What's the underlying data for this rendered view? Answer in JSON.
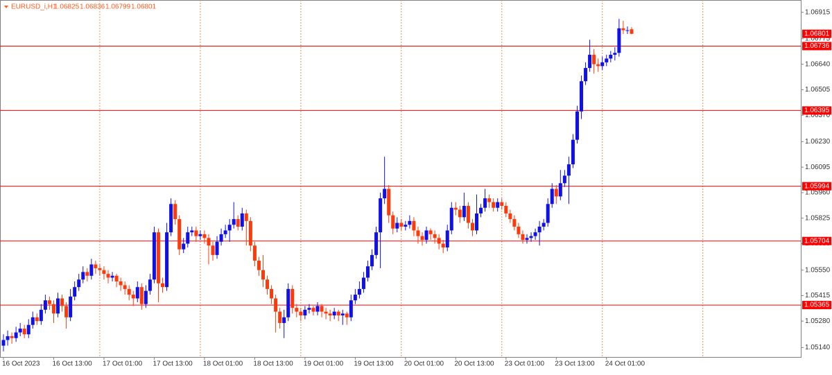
{
  "chart_data": {
    "type": "candlestick",
    "symbol": "EURUSD_i,H1",
    "categories": [
      "16 Oct 2023",
      null,
      null,
      null,
      null,
      null,
      null,
      null,
      null,
      null,
      null,
      null,
      "16 Oct 13:00",
      null,
      null,
      null,
      null,
      null,
      null,
      null,
      null,
      null,
      null,
      null,
      "17 Oct 01:00",
      null,
      null,
      null,
      null,
      null,
      null,
      null,
      null,
      null,
      null,
      null,
      "17 Oct 13:00",
      null,
      null,
      null,
      null,
      null,
      null,
      null,
      null,
      null,
      null,
      null,
      "18 Oct 01:00",
      null,
      null,
      null,
      null,
      null,
      null,
      null,
      null,
      null,
      null,
      null,
      "18 Oct 13:00",
      null,
      null,
      null,
      null,
      null,
      null,
      null,
      null,
      null,
      null,
      null,
      "19 Oct 01:00",
      null,
      null,
      null,
      null,
      null,
      null,
      null,
      null,
      null,
      null,
      null,
      "19 Oct 13:00",
      null,
      null,
      null,
      null,
      null,
      null,
      null,
      null,
      null,
      null,
      null,
      "20 Oct 01:00",
      null,
      null,
      null,
      null,
      null,
      null,
      null,
      null,
      null,
      null,
      null,
      "20 Oct 13:00",
      null,
      null,
      null,
      null,
      null,
      null,
      null,
      null,
      null,
      null,
      null,
      "23 Oct 01:00",
      null,
      null,
      null,
      null,
      null,
      null,
      null,
      null,
      null,
      null,
      null,
      "23 Oct 13:00",
      null,
      null,
      null,
      null,
      null,
      null,
      null,
      null,
      null,
      null,
      null,
      "24 Oct 01:00",
      null,
      null,
      null,
      null,
      null,
      null
    ],
    "candles": [
      [
        1.0515,
        1.0521,
        1.0512,
        1.0518
      ],
      [
        1.0518,
        1.0523,
        1.0515,
        1.052
      ],
      [
        1.052,
        1.0522,
        1.0516,
        1.0519
      ],
      [
        1.0519,
        1.0525,
        1.0517,
        1.0522
      ],
      [
        1.0522,
        1.0527,
        1.052,
        1.0524
      ],
      [
        1.0524,
        1.0526,
        1.0519,
        1.0521
      ],
      [
        1.0521,
        1.0529,
        1.0519,
        1.0526
      ],
      [
        1.0526,
        1.0533,
        1.0524,
        1.053
      ],
      [
        1.053,
        1.0532,
        1.0526,
        1.0528
      ],
      [
        1.0528,
        1.0537,
        1.0526,
        1.0534
      ],
      [
        1.0534,
        1.0542,
        1.0532,
        1.0539
      ],
      [
        1.0539,
        1.0541,
        1.0534,
        1.0537
      ],
      [
        1.0537,
        1.0539,
        1.0527,
        1.0532
      ],
      [
        1.0532,
        1.0543,
        1.053,
        1.054
      ],
      [
        1.054,
        1.0542,
        1.0533,
        1.0536
      ],
      [
        1.0536,
        1.0538,
        1.0524,
        1.053
      ],
      [
        1.053,
        1.0545,
        1.0528,
        1.0541
      ],
      [
        1.0541,
        1.0549,
        1.0539,
        1.0546
      ],
      [
        1.0546,
        1.0553,
        1.0544,
        1.055
      ],
      [
        1.055,
        1.0557,
        1.0548,
        1.0554
      ],
      [
        1.0554,
        1.0556,
        1.0549,
        1.0552
      ],
      [
        1.0552,
        1.0561,
        1.055,
        1.0558
      ],
      [
        1.0558,
        1.056,
        1.0553,
        1.0556
      ],
      [
        1.0556,
        1.0558,
        1.0552,
        1.0555
      ],
      [
        1.0555,
        1.0557,
        1.055,
        1.0553
      ],
      [
        1.0553,
        1.0555,
        1.0548,
        1.0551
      ],
      [
        1.0551,
        1.0554,
        1.0549,
        1.0552
      ],
      [
        1.0552,
        1.0553,
        1.0546,
        1.0549
      ],
      [
        1.0549,
        1.0551,
        1.0544,
        1.0547
      ],
      [
        1.0547,
        1.0549,
        1.0542,
        1.0545
      ],
      [
        1.0545,
        1.0547,
        1.0539,
        1.0542
      ],
      [
        1.0542,
        1.0544,
        1.0536,
        1.054
      ],
      [
        1.054,
        1.0549,
        1.0538,
        1.0546
      ],
      [
        1.0546,
        1.0548,
        1.0534,
        1.0537
      ],
      [
        1.0537,
        1.0547,
        1.0535,
        1.0544
      ],
      [
        1.0544,
        1.0553,
        1.0542,
        1.055
      ],
      [
        1.055,
        1.0578,
        1.0548,
        1.0575
      ],
      [
        1.0575,
        1.0577,
        1.0538,
        1.0548
      ],
      [
        1.0548,
        1.0551,
        1.0543,
        1.0546
      ],
      [
        1.0546,
        1.058,
        1.0544,
        1.0575
      ],
      [
        1.0575,
        1.0593,
        1.0573,
        1.059
      ],
      [
        1.059,
        1.0592,
        1.0579,
        1.0582
      ],
      [
        1.0582,
        1.0584,
        1.0563,
        1.0566
      ],
      [
        1.0566,
        1.0572,
        1.0564,
        1.0569
      ],
      [
        1.0569,
        1.0578,
        1.0567,
        1.0575
      ],
      [
        1.0575,
        1.0578,
        1.0573,
        1.0576
      ],
      [
        1.0576,
        1.0578,
        1.057,
        1.0573
      ],
      [
        1.0573,
        1.0576,
        1.0571,
        1.0574
      ],
      [
        1.0574,
        1.0576,
        1.0569,
        1.0572
      ],
      [
        1.0572,
        1.0574,
        1.0558,
        1.0568
      ],
      [
        1.0568,
        1.057,
        1.056,
        1.0563
      ],
      [
        1.0563,
        1.0573,
        1.0561,
        1.057
      ],
      [
        1.057,
        1.0577,
        1.0568,
        1.0574
      ],
      [
        1.0574,
        1.0579,
        1.0572,
        1.0576
      ],
      [
        1.0576,
        1.0582,
        1.057,
        1.0579
      ],
      [
        1.0579,
        1.0591,
        1.0577,
        1.0582
      ],
      [
        1.0582,
        1.0584,
        1.0576,
        1.0578
      ],
      [
        1.0578,
        1.0588,
        1.0576,
        1.0585
      ],
      [
        1.0585,
        1.0587,
        1.0568,
        1.0581
      ],
      [
        1.0581,
        1.0583,
        1.0565,
        1.0568
      ],
      [
        1.0568,
        1.057,
        1.0557,
        1.056
      ],
      [
        1.056,
        1.0562,
        1.0552,
        1.0555
      ],
      [
        1.0555,
        1.0563,
        1.0546,
        1.055
      ],
      [
        1.055,
        1.0552,
        1.0542,
        1.0545
      ],
      [
        1.0545,
        1.0547,
        1.0537,
        1.054
      ],
      [
        1.054,
        1.0542,
        1.0522,
        1.0533
      ],
      [
        1.0533,
        1.0535,
        1.0524,
        1.0527
      ],
      [
        1.0527,
        1.0534,
        1.0519,
        1.053
      ],
      [
        1.053,
        1.0548,
        1.0528,
        1.0545
      ],
      [
        1.0545,
        1.0547,
        1.0532,
        1.0535
      ],
      [
        1.0535,
        1.0537,
        1.053,
        1.0533
      ],
      [
        1.0533,
        1.0535,
        1.0528,
        1.0531
      ],
      [
        1.0531,
        1.0536,
        1.0529,
        1.0534
      ],
      [
        1.0534,
        1.0537,
        1.0532,
        1.0535
      ],
      [
        1.0535,
        1.0536,
        1.0531,
        1.0533
      ],
      [
        1.0533,
        1.0538,
        1.0531,
        1.0536
      ],
      [
        1.0536,
        1.0537,
        1.053,
        1.0533
      ],
      [
        1.0533,
        1.0535,
        1.0529,
        1.0532
      ],
      [
        1.0532,
        1.0534,
        1.0528,
        1.0531
      ],
      [
        1.0531,
        1.0535,
        1.0529,
        1.0533
      ],
      [
        1.0533,
        1.0534,
        1.0528,
        1.0531
      ],
      [
        1.0531,
        1.0534,
        1.0526,
        1.0532
      ],
      [
        1.0532,
        1.0533,
        1.0526,
        1.053
      ],
      [
        1.053,
        1.0542,
        1.0528,
        1.0539
      ],
      [
        1.0539,
        1.0545,
        1.0537,
        1.0542
      ],
      [
        1.0542,
        1.0549,
        1.054,
        1.0545
      ],
      [
        1.0545,
        1.0554,
        1.0543,
        1.0551
      ],
      [
        1.0551,
        1.056,
        1.0549,
        1.0557
      ],
      [
        1.0557,
        1.0566,
        1.0555,
        1.0563
      ],
      [
        1.0563,
        1.0578,
        1.0561,
        1.0575
      ],
      [
        1.0575,
        1.0596,
        1.0556,
        1.0593
      ],
      [
        1.0593,
        1.0615,
        1.059,
        1.0598
      ],
      [
        1.0598,
        1.06,
        1.058,
        1.0584
      ],
      [
        1.0584,
        1.0586,
        1.0574,
        1.0577
      ],
      [
        1.0577,
        1.0583,
        1.0575,
        1.058
      ],
      [
        1.058,
        1.0582,
        1.0576,
        1.0578
      ],
      [
        1.0578,
        1.0581,
        1.0576,
        1.0579
      ],
      [
        1.0579,
        1.0584,
        1.0577,
        1.0581
      ],
      [
        1.0581,
        1.0583,
        1.0573,
        1.0576
      ],
      [
        1.0576,
        1.0578,
        1.0569,
        1.0573
      ],
      [
        1.0573,
        1.0575,
        1.0568,
        1.0571
      ],
      [
        1.0571,
        1.0578,
        1.0569,
        1.0576
      ],
      [
        1.0576,
        1.0577,
        1.0571,
        1.0574
      ],
      [
        1.0574,
        1.0576,
        1.0569,
        1.0572
      ],
      [
        1.0572,
        1.0574,
        1.0566,
        1.0569
      ],
      [
        1.0569,
        1.0571,
        1.0564,
        1.0567
      ],
      [
        1.0567,
        1.0579,
        1.0565,
        1.0576
      ],
      [
        1.0576,
        1.0591,
        1.0574,
        1.0588
      ],
      [
        1.0588,
        1.0591,
        1.0584,
        1.0587
      ],
      [
        1.0587,
        1.0589,
        1.058,
        1.0583
      ],
      [
        1.0583,
        1.0596,
        1.0581,
        1.0589
      ],
      [
        1.0589,
        1.0591,
        1.0577,
        1.058
      ],
      [
        1.058,
        1.0582,
        1.0573,
        1.0576
      ],
      [
        1.0576,
        1.0595,
        1.0574,
        1.0585
      ],
      [
        1.0585,
        1.059,
        1.0583,
        1.0588
      ],
      [
        1.0588,
        1.0598,
        1.0586,
        1.0593
      ],
      [
        1.0593,
        1.0595,
        1.0588,
        1.0591
      ],
      [
        1.0591,
        1.0593,
        1.0586,
        1.0588
      ],
      [
        1.0588,
        1.0593,
        1.0586,
        1.0591
      ],
      [
        1.0591,
        1.0593,
        1.0587,
        1.0589
      ],
      [
        1.0589,
        1.0591,
        1.0583,
        1.0585
      ],
      [
        1.0585,
        1.0587,
        1.058,
        1.0582
      ],
      [
        1.0582,
        1.0584,
        1.0576,
        1.0578
      ],
      [
        1.0578,
        1.058,
        1.0572,
        1.0574
      ],
      [
        1.0574,
        1.0576,
        1.0569,
        1.0571
      ],
      [
        1.0571,
        1.0574,
        1.0569,
        1.0572
      ],
      [
        1.0572,
        1.0575,
        1.057,
        1.0573
      ],
      [
        1.0573,
        1.0577,
        1.0571,
        1.0575
      ],
      [
        1.0575,
        1.0581,
        1.0568,
        1.0578
      ],
      [
        1.0578,
        1.0582,
        1.0576,
        1.058
      ],
      [
        1.058,
        1.0593,
        1.0578,
        1.059
      ],
      [
        1.059,
        1.0601,
        1.0588,
        1.0598
      ],
      [
        1.0598,
        1.06,
        1.059,
        1.0594
      ],
      [
        1.0594,
        1.0608,
        1.0592,
        1.0601
      ],
      [
        1.0601,
        1.0608,
        1.0599,
        1.0605
      ],
      [
        1.0605,
        1.0615,
        1.059,
        1.0611
      ],
      [
        1.0611,
        1.0627,
        1.0609,
        1.0624
      ],
      [
        1.0624,
        1.0642,
        1.0622,
        1.0639
      ],
      [
        1.0639,
        1.0658,
        1.0635,
        1.0655
      ],
      [
        1.0655,
        1.0665,
        1.0653,
        1.0662
      ],
      [
        1.0662,
        1.0677,
        1.066,
        1.0669
      ],
      [
        1.0669,
        1.0672,
        1.0659,
        1.0664
      ],
      [
        1.0664,
        1.0667,
        1.066,
        1.0663
      ],
      [
        1.0663,
        1.0668,
        1.0661,
        1.0665
      ],
      [
        1.0665,
        1.0669,
        1.0663,
        1.0667
      ],
      [
        1.0667,
        1.0671,
        1.0665,
        1.0669
      ],
      [
        1.0669,
        1.0673,
        1.0666,
        1.067
      ],
      [
        1.067,
        1.0688,
        1.0668,
        1.0683
      ],
      [
        1.0683,
        1.0687,
        1.068,
        1.0682
      ],
      [
        1.0682,
        1.0684,
        1.068,
        1.0682
      ],
      [
        1.06825,
        1.06836,
        1.06799,
        1.06801
      ]
    ],
    "up_color": "#1010e8",
    "down_color": "#ff3a0a",
    "levels": [
      1.06736,
      1.06395,
      1.05994,
      1.05704,
      1.05365
    ],
    "level_color": "#ff0000",
    "ylim": [
      1.0509,
      1.0698
    ],
    "yticks": [
      1.06915,
      1.06775,
      {
        "value": 1.0664,
        "label": "1.06640"
      },
      1.06505,
      {
        "value": 1.0637,
        "label": "1.06370"
      },
      {
        "value": 1.0623,
        "label": "1.06230"
      },
      1.06095,
      {
        "value": 1.0596,
        "label": "1.05960"
      },
      1.05825,
      {
        "value": 1.0569,
        "label": "1.05690"
      },
      {
        "value": 1.0555,
        "label": "1.05550"
      },
      1.05415,
      {
        "value": 1.0528,
        "label": "1.05280"
      },
      {
        "value": 1.0514,
        "label": "1.05140"
      }
    ],
    "grid": true
  }
}
